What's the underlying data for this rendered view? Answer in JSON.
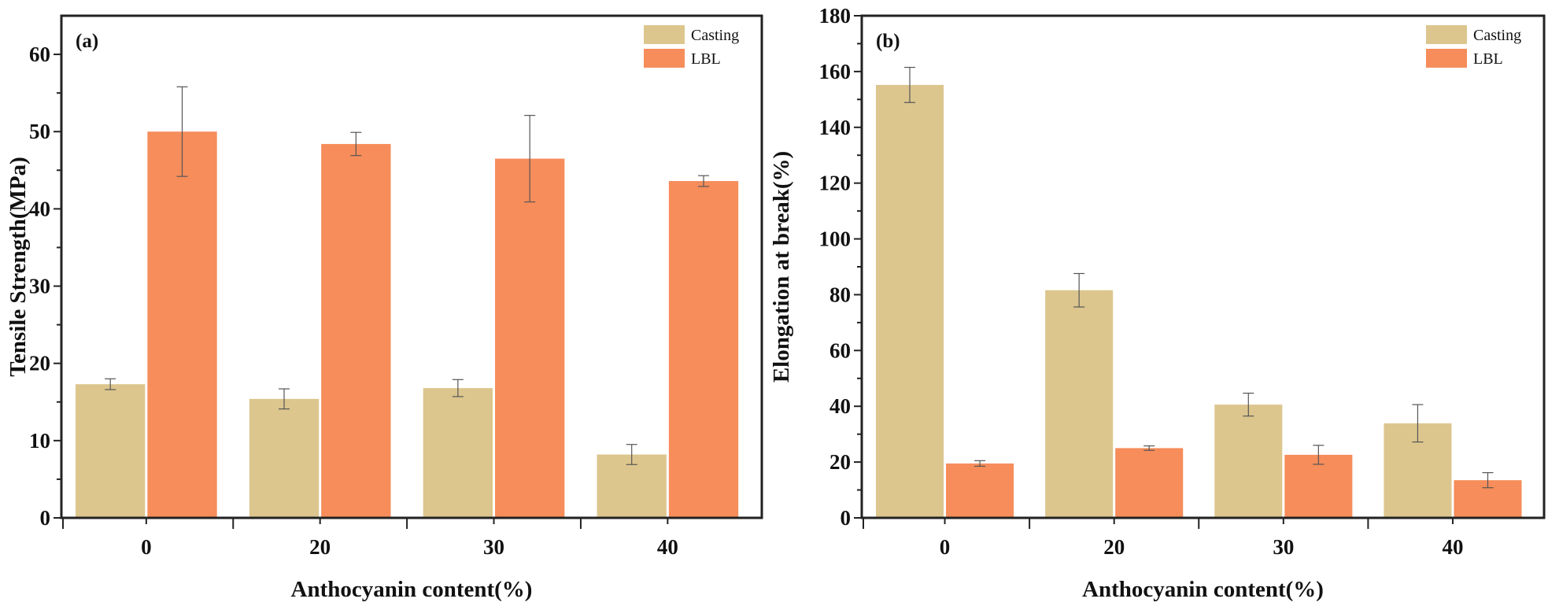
{
  "colors": {
    "casting": "#DCC68E",
    "lbl": "#F68D5A",
    "axis": "#222222",
    "errorbar": "#555555"
  },
  "chart_data": [
    {
      "type": "bar",
      "panel_label": "(a)",
      "categories": [
        "0",
        "20",
        "30",
        "40"
      ],
      "xlabel": "Anthocyanin content(%)",
      "ylabel": "Tensile Strength(MPa)",
      "ylim": [
        0,
        65
      ],
      "yticks": [
        "0",
        "10",
        "20",
        "30",
        "40",
        "50",
        "60"
      ],
      "legend": [
        "Casting",
        "LBL"
      ],
      "legend_position": "top-right",
      "series": [
        {
          "name": "Casting",
          "values": [
            17.3,
            15.4,
            16.8,
            8.2
          ],
          "errors": [
            0.7,
            1.3,
            1.1,
            1.3
          ]
        },
        {
          "name": "LBL",
          "values": [
            50.0,
            48.4,
            46.5,
            43.6
          ],
          "errors": [
            5.8,
            1.5,
            5.6,
            0.7
          ]
        }
      ]
    },
    {
      "type": "bar",
      "panel_label": "(b)",
      "categories": [
        "0",
        "20",
        "30",
        "40"
      ],
      "xlabel": "Anthocyanin content(%)",
      "ylabel": "Elongation at break(%)",
      "ylim": [
        0,
        180
      ],
      "yticks": [
        "0",
        "20",
        "40",
        "60",
        "80",
        "100",
        "120",
        "140",
        "160",
        "180"
      ],
      "legend": [
        "Casting",
        "LBL"
      ],
      "legend_position": "top-right",
      "series": [
        {
          "name": "Casting",
          "values": [
            155.2,
            81.6,
            40.6,
            33.9
          ],
          "errors": [
            6.3,
            6.0,
            4.1,
            6.7
          ]
        },
        {
          "name": "LBL",
          "values": [
            19.5,
            25.0,
            22.6,
            13.5
          ],
          "errors": [
            1.0,
            0.8,
            3.4,
            2.7
          ]
        }
      ]
    }
  ]
}
